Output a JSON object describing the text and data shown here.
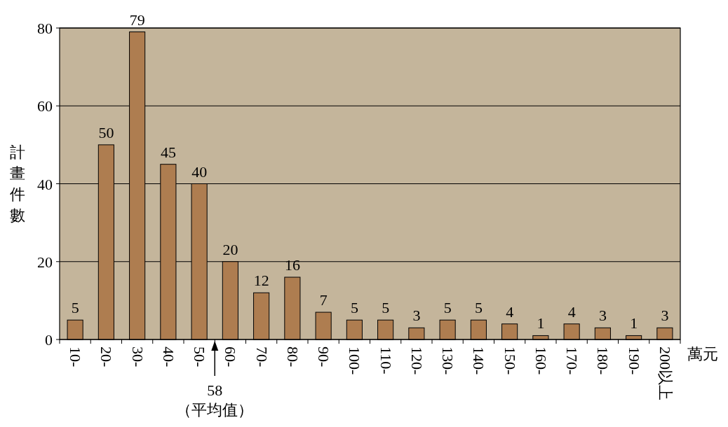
{
  "chart_data": {
    "type": "bar",
    "categories": [
      "10-",
      "20-",
      "30-",
      "40-",
      "50-",
      "60-",
      "70-",
      "80-",
      "90-",
      "100-",
      "110-",
      "120-",
      "130-",
      "140-",
      "150-",
      "160-",
      "170-",
      "180-",
      "190-",
      "200以上"
    ],
    "series": [
      {
        "color": "#ae7d50",
        "values": [
          5,
          50,
          79,
          45,
          40,
          20,
          12,
          16,
          7,
          5,
          5,
          3,
          5,
          5,
          4,
          1,
          4,
          3,
          1,
          3
        ]
      }
    ],
    "ylim": [
      0,
      80
    ],
    "yticks": [
      0,
      20,
      40,
      60,
      80
    ],
    "grid": "y",
    "ylabel": "計畫件數",
    "xlabel": "萬元",
    "data_labels": true,
    "annotations": [
      "58\n（平均值）"
    ]
  }
}
